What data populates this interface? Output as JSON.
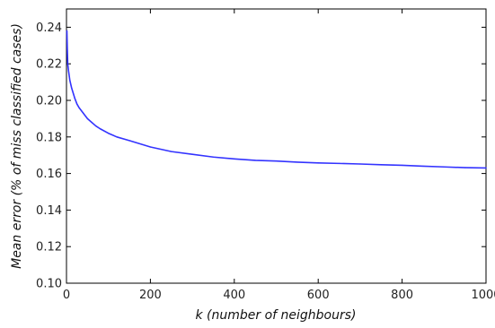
{
  "chart_data": {
    "type": "line",
    "title": "",
    "xlabel": "k (number of neighbours)",
    "ylabel": "Mean error (% of miss classified cases)",
    "xlim": [
      0,
      1000
    ],
    "ylim": [
      0.1,
      0.25
    ],
    "x_ticks": [
      0,
      200,
      400,
      600,
      800,
      1000
    ],
    "y_ticks": [
      0.1,
      0.12,
      0.14,
      0.16,
      0.18,
      0.2,
      0.22,
      0.24
    ],
    "x_tick_labels": [
      "0",
      "200",
      "400",
      "600",
      "800",
      "1000"
    ],
    "y_tick_labels": [
      "0.10",
      "0.12",
      "0.14",
      "0.16",
      "0.18",
      "0.20",
      "0.22",
      "0.24"
    ],
    "grid": false,
    "series": [
      {
        "color": "#3333ff",
        "x": [
          1,
          2,
          3,
          5,
          8,
          12,
          16,
          20,
          25,
          30,
          40,
          50,
          60,
          70,
          80,
          100,
          120,
          150,
          200,
          250,
          300,
          350,
          400,
          450,
          500,
          550,
          600,
          650,
          700,
          750,
          800,
          850,
          900,
          950,
          1000
        ],
        "y": [
          0.238,
          0.228,
          0.22,
          0.216,
          0.211,
          0.207,
          0.204,
          0.201,
          0.198,
          0.196,
          0.193,
          0.19,
          0.188,
          0.186,
          0.1845,
          0.182,
          0.18,
          0.178,
          0.1745,
          0.172,
          0.1705,
          0.169,
          0.168,
          0.1672,
          0.1668,
          0.1662,
          0.1658,
          0.1655,
          0.1652,
          0.1648,
          0.1645,
          0.164,
          0.1636,
          0.1632,
          0.163
        ]
      }
    ]
  }
}
